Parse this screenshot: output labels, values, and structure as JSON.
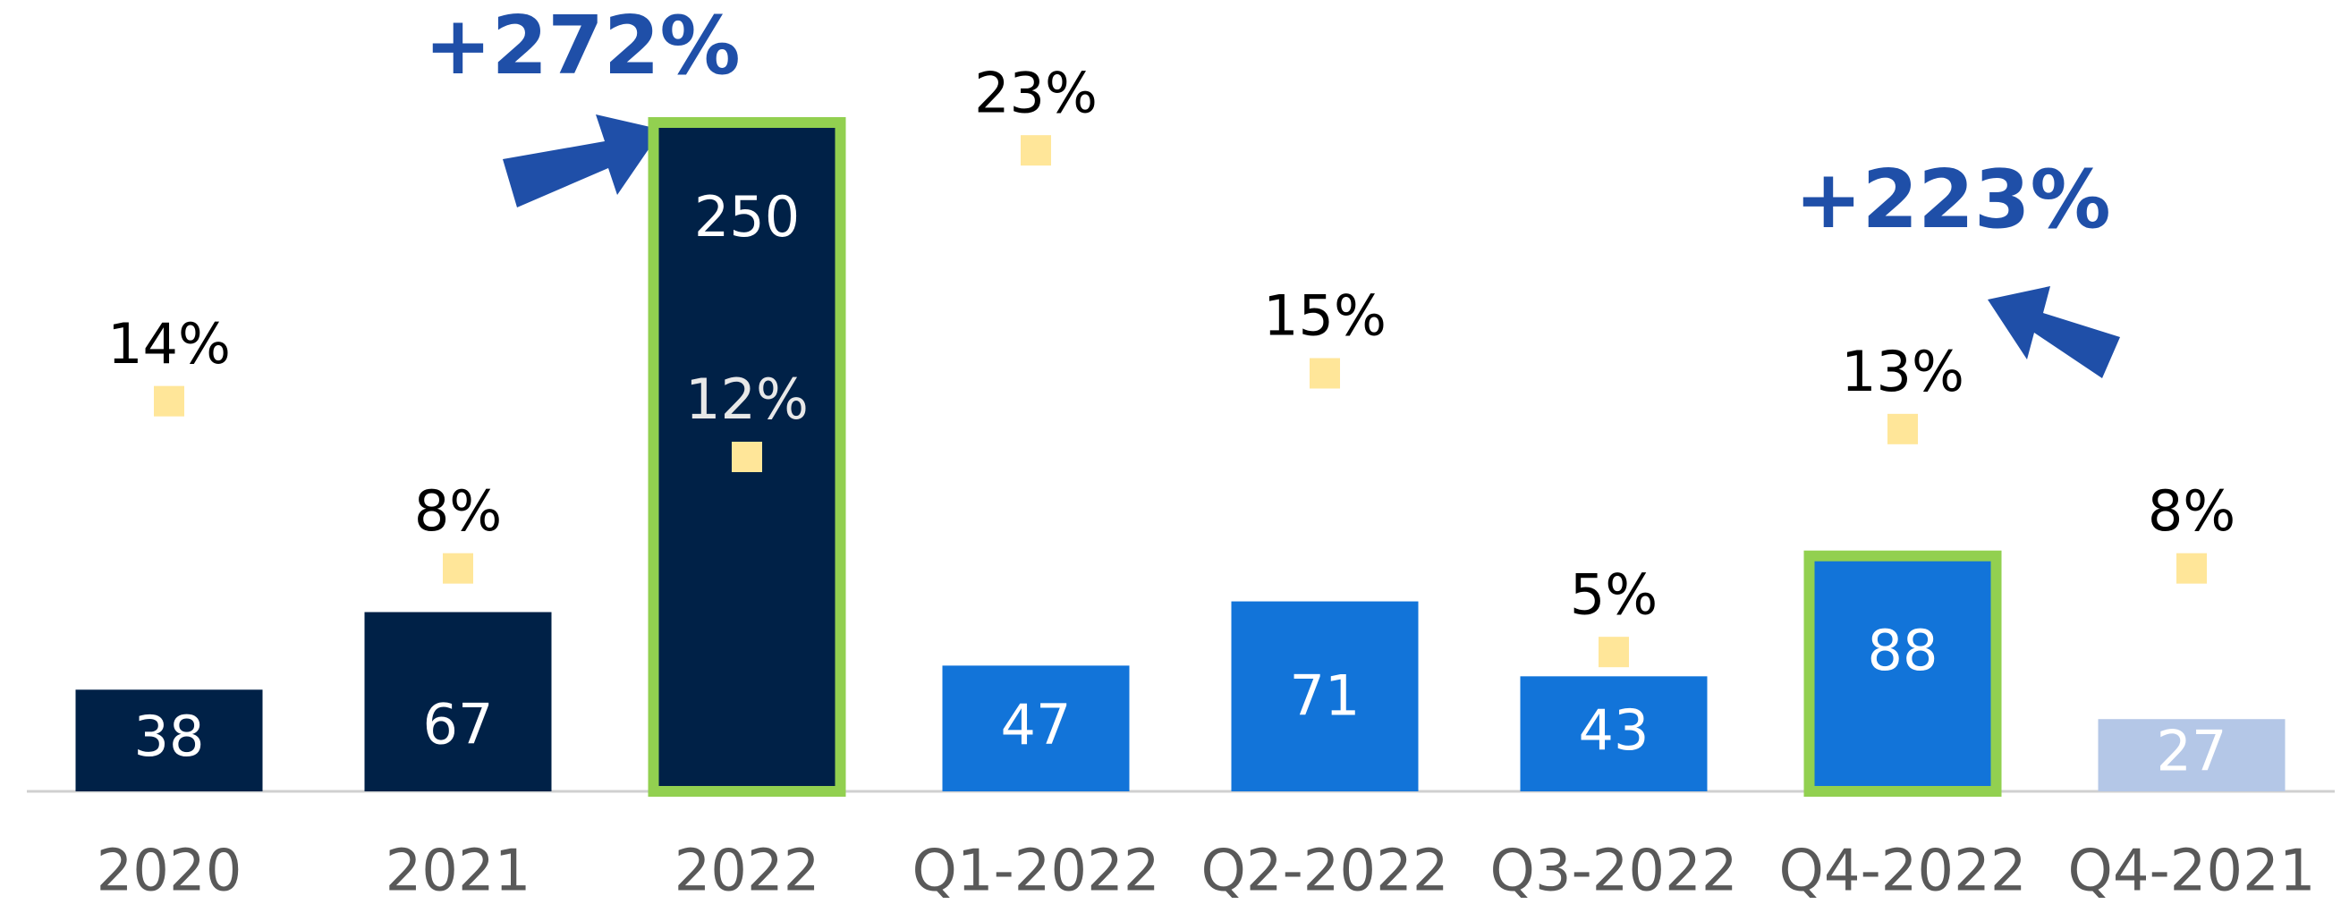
{
  "chart_data": {
    "type": "bar",
    "categories": [
      "2020",
      "2021",
      "2022",
      "Q1-2022",
      "Q2-2022",
      "Q3-2022",
      "Q4-2022",
      "Q4-2021"
    ],
    "values": [
      38,
      67,
      250,
      47,
      71,
      43,
      88,
      27
    ],
    "colors": [
      "#002147",
      "#002147",
      "#002147",
      "#1274d9",
      "#1274d9",
      "#1274d9",
      "#1274d9",
      "#b4c7e7"
    ],
    "highlighted": [
      false,
      false,
      true,
      false,
      false,
      false,
      true,
      false
    ],
    "highlight_color": "#92d050",
    "ylim": [
      0,
      250
    ],
    "y2_values": [
      14,
      8,
      12,
      23,
      15,
      5,
      13,
      8
    ],
    "y2_value_labels": [
      "14%",
      "8%",
      "12%",
      "23%",
      "15%",
      "5%",
      "13%",
      "8%"
    ],
    "y2lim": [
      0,
      24
    ],
    "marker_color": "#ffe699",
    "annotations": [
      "+272%",
      "+223%"
    ]
  }
}
